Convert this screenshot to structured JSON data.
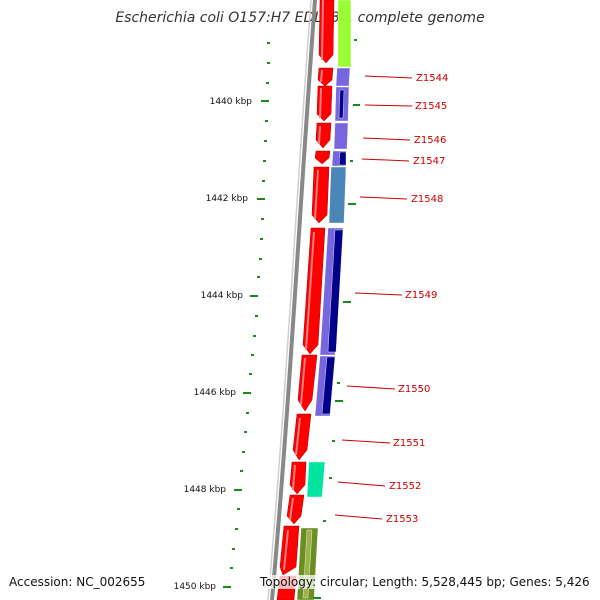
{
  "title": "Escherichia coli O157:H7 EDL933, complete genome",
  "footer": {
    "accession": "Accession: NC_002655",
    "summary": "Topology: circular; Length: 5,528,445 bp; Genes: 5,426"
  },
  "scale_ticks": [
    "1440 kbp",
    "1442 kbp",
    "1444 kbp",
    "1446 kbp",
    "1448 kbp",
    "1450 kbp"
  ],
  "genes": [
    {
      "label": "Z1544"
    },
    {
      "label": "Z1545"
    },
    {
      "label": "Z1546"
    },
    {
      "label": "Z1547"
    },
    {
      "label": "Z1548"
    },
    {
      "label": "Z1549"
    },
    {
      "label": "Z1550"
    },
    {
      "label": "Z1551"
    },
    {
      "label": "Z1552"
    },
    {
      "label": "Z1553"
    }
  ],
  "colors": {
    "backbone": "#888888",
    "cds": "#ff0000",
    "tick": "#1a8a1a",
    "label": "#cc0000",
    "cog_lime": "#99ff33",
    "cog_purple": "#7766dd",
    "cog_navy": "#00008b",
    "cog_steel": "#4a86b8",
    "cog_teal": "#00e5a0",
    "cog_olive": "#6b8e23"
  }
}
